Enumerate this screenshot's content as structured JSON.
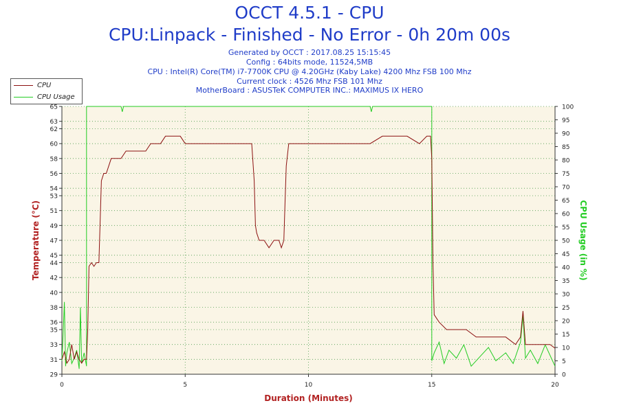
{
  "header": {
    "title": "OCCT 4.5.1 - CPU",
    "subtitle": "CPU:Linpack - Finished - No Error - 0h 20m 00s",
    "info_lines": [
      "Generated by OCCT : 2017.08.25 15:15:45",
      "Config : 64bits mode, 11524,5MB",
      "CPU : Intel(R) Core(TM) i7-7700K CPU @ 4.20GHz (Kaby Lake) 4200 Mhz FSB 100 Mhz",
      "Current clock : 4526 Mhz FSB 101 Mhz",
      "MotherBoard : ASUSTeK COMPUTER INC.: MAXIMUS IX HERO"
    ]
  },
  "colors": {
    "cpu": "#8b0f0f",
    "usage": "#22cc22",
    "plot_bg": "#faf5e6",
    "grid": "#4a9a4a",
    "axis_label": "#b22222"
  },
  "chart_data": {
    "type": "line",
    "xlabel": "Duration (Minutes)",
    "ylabel_left": "Temperature (°C)",
    "ylabel_right": "CPU Usage (in %)",
    "xlim": [
      0,
      20
    ],
    "ylim_left": [
      29,
      65
    ],
    "ylim_right": [
      0,
      100
    ],
    "x_ticks": [
      0,
      5,
      10,
      15,
      20
    ],
    "y_left_ticks": [
      29,
      31,
      33,
      35,
      36,
      38,
      40,
      42,
      44,
      45,
      47,
      49,
      51,
      53,
      54,
      56,
      58,
      60,
      62,
      63,
      65
    ],
    "y_right_ticks": [
      0,
      5,
      10,
      15,
      20,
      25,
      30,
      35,
      40,
      45,
      50,
      55,
      60,
      65,
      70,
      75,
      80,
      85,
      90,
      95,
      100
    ],
    "grid": true,
    "legend_position": "top-left",
    "series": [
      {
        "name": "CPU",
        "axis": "left",
        "x": [
          0,
          0.1,
          0.2,
          0.3,
          0.4,
          0.5,
          0.6,
          0.7,
          0.8,
          0.9,
          1.0,
          1.05,
          1.1,
          1.2,
          1.3,
          1.4,
          1.5,
          1.6,
          1.7,
          1.8,
          1.9,
          2.0,
          2.2,
          2.4,
          2.6,
          2.8,
          3.0,
          3.2,
          3.4,
          3.6,
          3.8,
          4.0,
          4.2,
          4.4,
          4.6,
          4.8,
          5.0,
          5.4,
          5.8,
          6.2,
          6.6,
          7.0,
          7.4,
          7.7,
          7.8,
          7.85,
          7.9,
          8.0,
          8.2,
          8.4,
          8.6,
          8.8,
          8.9,
          9.0,
          9.05,
          9.1,
          9.2,
          9.4,
          9.8,
          10.2,
          10.6,
          11.0,
          11.5,
          12.0,
          12.5,
          13.0,
          13.5,
          14.0,
          14.5,
          14.8,
          14.95,
          15.0,
          15.05,
          15.1,
          15.3,
          15.6,
          16.0,
          16.4,
          16.8,
          17.2,
          17.6,
          18.0,
          18.4,
          18.6,
          18.7,
          18.8,
          19.0,
          19.3,
          19.6,
          19.8,
          20.0
        ],
        "y": [
          31,
          32,
          30.5,
          31,
          33,
          31,
          32,
          31,
          30.5,
          31,
          31,
          35,
          43.5,
          44,
          43.5,
          44,
          44,
          55,
          56,
          56,
          57,
          58,
          58,
          58,
          59,
          59,
          59,
          59,
          59,
          60,
          60,
          60,
          61,
          61,
          61,
          61,
          60,
          60,
          60,
          60,
          60,
          60,
          60,
          60,
          55,
          49,
          48,
          47,
          47,
          46,
          47,
          47,
          46,
          47,
          52,
          57,
          60,
          60,
          60,
          60,
          60,
          60,
          60,
          60,
          60,
          61,
          61,
          61,
          60,
          61,
          61,
          58,
          44,
          37,
          36,
          35,
          35,
          35,
          34,
          34,
          34,
          34,
          33,
          34,
          37.5,
          33,
          33,
          33,
          33,
          33,
          32.5
        ]
      },
      {
        "name": "CPU Usage",
        "axis": "right",
        "x": [
          0,
          0.05,
          0.1,
          0.15,
          0.2,
          0.3,
          0.4,
          0.5,
          0.6,
          0.7,
          0.75,
          0.8,
          0.9,
          1.0,
          1.0,
          1.02,
          2.4,
          2.45,
          2.5,
          12.5,
          12.55,
          12.6,
          14.98,
          15.0,
          15.0,
          15.1,
          15.3,
          15.5,
          15.7,
          16.0,
          16.3,
          16.6,
          17.0,
          17.3,
          17.6,
          18.0,
          18.3,
          18.6,
          18.7,
          18.8,
          19.0,
          19.3,
          19.6,
          19.9,
          20.0
        ],
        "y": [
          5,
          15,
          27,
          3,
          8,
          12,
          4,
          6,
          9,
          2,
          25,
          4,
          8,
          3,
          100,
          100,
          100,
          98,
          100,
          100,
          98,
          100,
          100,
          100,
          5,
          8,
          12,
          4,
          9,
          6,
          11,
          3,
          7,
          10,
          5,
          8,
          4,
          12,
          22,
          6,
          9,
          4,
          11,
          5,
          3
        ]
      }
    ]
  }
}
